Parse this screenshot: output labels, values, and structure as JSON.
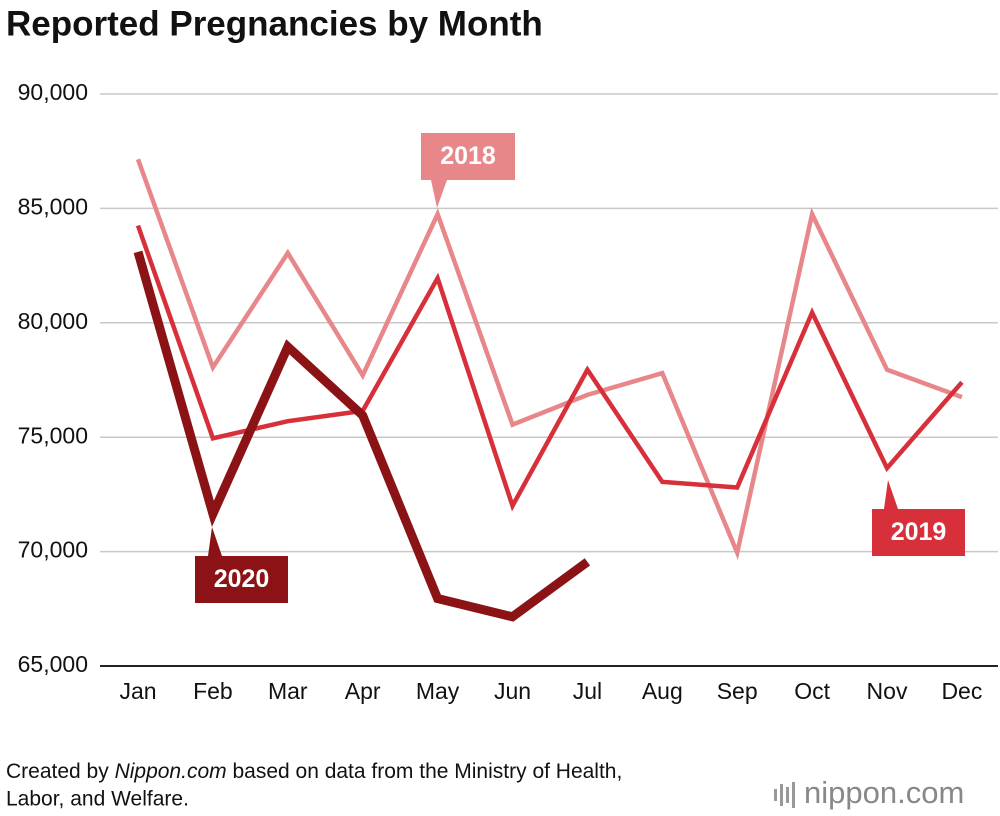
{
  "chart_data": {
    "type": "line",
    "title": "Reported Pregnancies by Month",
    "categories": [
      "Jan",
      "Feb",
      "Mar",
      "Apr",
      "May",
      "Jun",
      "Jul",
      "Aug",
      "Sep",
      "Oct",
      "Nov",
      "Dec"
    ],
    "series": [
      {
        "name": "2018",
        "color": "#e8878a",
        "values": [
          87150,
          78050,
          83050,
          77700,
          84750,
          75550,
          76850,
          77800,
          69950,
          84750,
          77950,
          76750
        ]
      },
      {
        "name": "2019",
        "color": "#d7303a",
        "values": [
          84250,
          74950,
          75700,
          76150,
          81950,
          72000,
          77950,
          73050,
          72800,
          80450,
          73650,
          77400
        ]
      },
      {
        "name": "2020",
        "color": "#8b1316",
        "values": [
          83100,
          71650,
          78950,
          75950,
          67950,
          67150,
          69550,
          null,
          null,
          null,
          null,
          null
        ]
      }
    ],
    "ylim": [
      65000,
      90000
    ],
    "yticks": [
      {
        "value": 65000,
        "label": "65,000"
      },
      {
        "value": 70000,
        "label": "70,000"
      },
      {
        "value": 75000,
        "label": "75,000"
      },
      {
        "value": 80000,
        "label": "80,000"
      },
      {
        "value": 85000,
        "label": "85,000"
      },
      {
        "value": 90000,
        "label": "90,000"
      }
    ],
    "grid": true,
    "source": [
      "Created by ",
      "Nippon.com",
      " based on data from the Ministry of Health,",
      "Labor, and Welfare."
    ],
    "logo": "nippon.com"
  }
}
